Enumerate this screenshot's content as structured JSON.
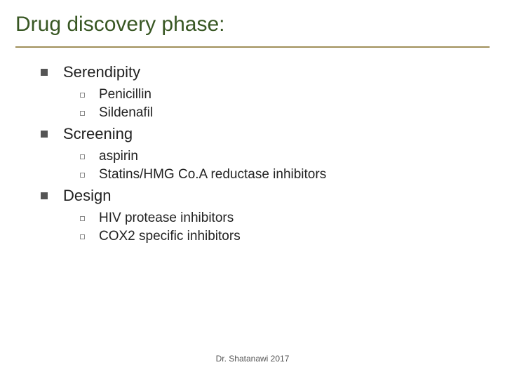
{
  "title": "Drug discovery phase:",
  "title_color": "#385723",
  "title_fontsize": 30,
  "divider_color": "#a08f5a",
  "sections": [
    {
      "heading": "Serendipity",
      "items": [
        "Penicillin",
        "Sildenafil"
      ]
    },
    {
      "heading": "Screening",
      "items": [
        "aspirin",
        "Statins/HMG Co.A reductase inhibitors"
      ]
    },
    {
      "heading": "Design",
      "items": [
        "HIV protease inhibitors",
        "COX2 specific inhibitors"
      ]
    }
  ],
  "footer": "Dr. Shatanawi 2017",
  "background_color": "#ffffff",
  "body_fontsize": 19,
  "section_fontsize": 22
}
